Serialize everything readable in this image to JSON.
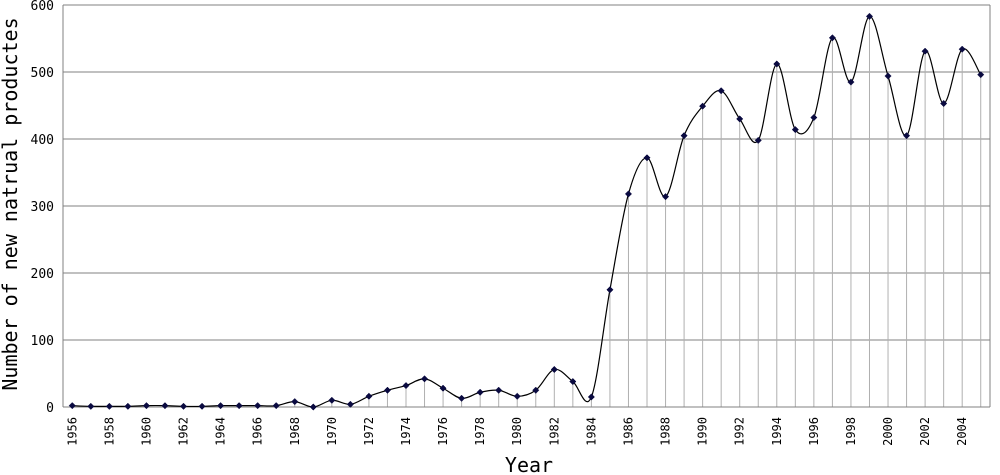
{
  "chart_data": {
    "type": "line",
    "xlabel": "Year",
    "ylabel": "Number of new natrual productes",
    "ylim": [
      0,
      600
    ],
    "yticks": [
      0,
      100,
      200,
      300,
      400,
      500,
      600
    ],
    "xlim": [
      1956,
      2005
    ],
    "xtick_labels": [
      "1956",
      "1958",
      "1960",
      "1962",
      "1964",
      "1966",
      "1968",
      "1970",
      "1972",
      "1974",
      "1976",
      "1978",
      "1980",
      "1982",
      "1984",
      "1986",
      "1988",
      "1990",
      "1992",
      "1994",
      "1996",
      "1998",
      "2000",
      "2002",
      "2004"
    ],
    "grid": "horizontal gridlines plus vertical drop lines from each point",
    "line_color": "#000000",
    "marker_color": "#0a0a40",
    "series": [
      {
        "x": [
          1956,
          1957,
          1958,
          1959,
          1960,
          1961,
          1962,
          1963,
          1964,
          1965,
          1966,
          1967,
          1968,
          1969,
          1970,
          1971,
          1972,
          1973,
          1974,
          1975,
          1976,
          1977,
          1978,
          1979,
          1980,
          1981,
          1982,
          1983,
          1984,
          1985,
          1986,
          1987,
          1988,
          1989,
          1990,
          1991,
          1992,
          1993,
          1994,
          1995,
          1996,
          1997,
          1998,
          1999,
          2000,
          2001,
          2002,
          2003,
          2004,
          2005
        ],
        "values": [
          2,
          1,
          1,
          1,
          2,
          2,
          1,
          1,
          2,
          2,
          2,
          2,
          8,
          0,
          10,
          4,
          16,
          25,
          32,
          42,
          28,
          13,
          22,
          25,
          16,
          25,
          56,
          38,
          15,
          175,
          318,
          372,
          314,
          405,
          449,
          472,
          430,
          398,
          512,
          414,
          432,
          551,
          485,
          583,
          494,
          405,
          531,
          453,
          534,
          496
        ]
      }
    ]
  }
}
